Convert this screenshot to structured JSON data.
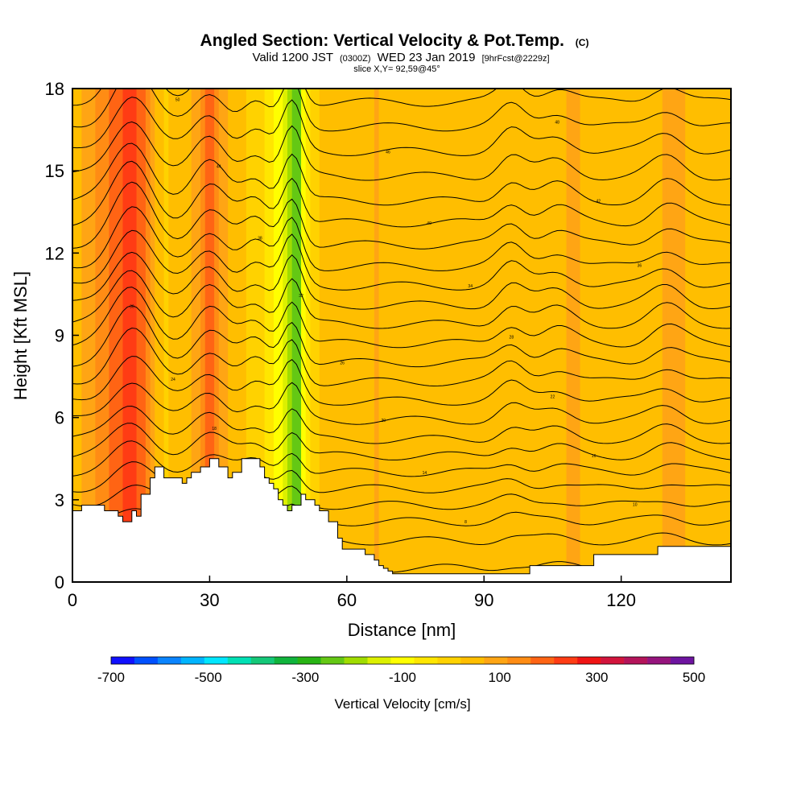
{
  "chart_data": {
    "type": "heatmap",
    "title": "Angled Section: Vertical Velocity & Pot.Temp.",
    "title_units": "(C)",
    "subtitle_prefix": "Valid 1200 JST",
    "subtitle_zulu": "(0300Z)",
    "subtitle_date": "WED 23 Jan 2019",
    "subtitle_fcst": "[9hrFcst@2229z]",
    "slice_label": "slice X,Y= 92,59@45°",
    "xlabel": "Distance [nm]",
    "ylabel": "Height [Kft MSL]",
    "xlim": [
      0,
      144
    ],
    "ylim": [
      0,
      18
    ],
    "xticks": [
      0,
      30,
      60,
      90,
      120
    ],
    "yticks": [
      0,
      3,
      6,
      9,
      12,
      15,
      18
    ],
    "colorbar": {
      "label": "Vertical Velocity [cm/s]",
      "range": [
        -700,
        500
      ],
      "ticks": [
        -700,
        -500,
        -300,
        -100,
        100,
        300,
        500
      ],
      "colors": [
        "#1010ff",
        "#0050ff",
        "#0a84ff",
        "#00b4ff",
        "#00e6ff",
        "#00e0b4",
        "#14c878",
        "#10b43c",
        "#28b414",
        "#64c814",
        "#a0dc00",
        "#dcf000",
        "#ffff00",
        "#ffe600",
        "#ffd200",
        "#ffbe00",
        "#ffa514",
        "#ff8c14",
        "#ff6414",
        "#ff3c14",
        "#f01414",
        "#d2143c",
        "#b4145a",
        "#96147d",
        "#6e14a0"
      ]
    },
    "value_field_description_columns": {
      "x": [
        0,
        6,
        13,
        20,
        26,
        30,
        35,
        40,
        44,
        47,
        49,
        51,
        54,
        60,
        67,
        75,
        82,
        90,
        97,
        102,
        110,
        113,
        120,
        128,
        131,
        137,
        144
      ],
      "w": [
        40,
        130,
        250,
        10,
        60,
        180,
        40,
        10,
        -60,
        -160,
        -290,
        -60,
        30,
        60,
        70,
        30,
        50,
        25,
        60,
        35,
        80,
        50,
        30,
        50,
        100,
        40,
        70
      ]
    },
    "terrain": {
      "x": [
        0,
        2,
        2,
        7,
        7,
        10,
        10,
        11,
        11,
        13,
        13,
        14,
        14,
        15,
        15,
        17,
        17,
        18,
        18,
        20,
        20,
        24,
        24,
        25,
        25,
        26,
        26,
        28,
        28,
        30,
        30,
        32,
        32,
        34,
        34,
        35,
        35,
        37,
        37,
        41,
        41,
        42,
        42,
        43,
        43,
        44,
        44,
        45,
        45,
        46,
        46,
        47,
        47,
        48,
        48,
        50,
        50,
        51,
        51,
        53,
        53,
        54,
        54,
        56,
        56,
        58,
        58,
        59,
        59,
        64,
        64,
        66,
        66,
        67,
        67,
        68,
        68,
        69,
        69,
        70,
        70,
        71,
        71,
        72,
        72,
        100,
        100,
        114,
        114,
        128,
        128,
        139,
        139,
        144
      ],
      "h": [
        2.6,
        2.6,
        2.8,
        2.8,
        2.6,
        2.6,
        2.4,
        2.4,
        2.2,
        2.2,
        2.6,
        2.6,
        2.4,
        2.4,
        3.2,
        3.2,
        3.8,
        3.8,
        4.2,
        4.2,
        3.8,
        3.8,
        3.6,
        3.6,
        3.8,
        3.8,
        4.0,
        4.0,
        4.2,
        4.2,
        4.5,
        4.5,
        4.2,
        4.2,
        3.8,
        3.8,
        4.0,
        4.0,
        4.5,
        4.5,
        4.2,
        4.2,
        3.8,
        3.8,
        3.6,
        3.6,
        3.4,
        3.4,
        3.0,
        3.0,
        2.8,
        2.8,
        2.6,
        2.6,
        2.8,
        2.8,
        3.2,
        3.2,
        3.0,
        3.0,
        2.8,
        2.8,
        2.6,
        2.6,
        2.2,
        2.2,
        1.6,
        1.6,
        1.2,
        1.2,
        1.0,
        1.0,
        0.8,
        0.8,
        0.6,
        0.6,
        0.5,
        0.5,
        0.4,
        0.4,
        0.3,
        0.3,
        0.3,
        0.3,
        0.3,
        0.3,
        0.6,
        0.6,
        1.0,
        1.0,
        1.3,
        1.3,
        1.3,
        1.3
      ]
    },
    "isentropes": {
      "base_heights": [
        0.5,
        1.5,
        2.2,
        2.8,
        3.4,
        4.0,
        4.6,
        5.2,
        5.9,
        6.6,
        7.3,
        8.0,
        8.7,
        9.4,
        10.1,
        10.8,
        11.5,
        12.3,
        13.1,
        13.9,
        14.8,
        15.7,
        16.6,
        17.5,
        18.4
      ],
      "labels": [
        "4",
        "6",
        "8",
        "10",
        "12",
        "14",
        "16",
        "18",
        "20",
        "22",
        "24",
        "26",
        "28",
        "30",
        "32",
        "34",
        "36",
        "38",
        "40",
        "42",
        "44",
        "46",
        "48",
        "50",
        "52"
      ]
    }
  }
}
